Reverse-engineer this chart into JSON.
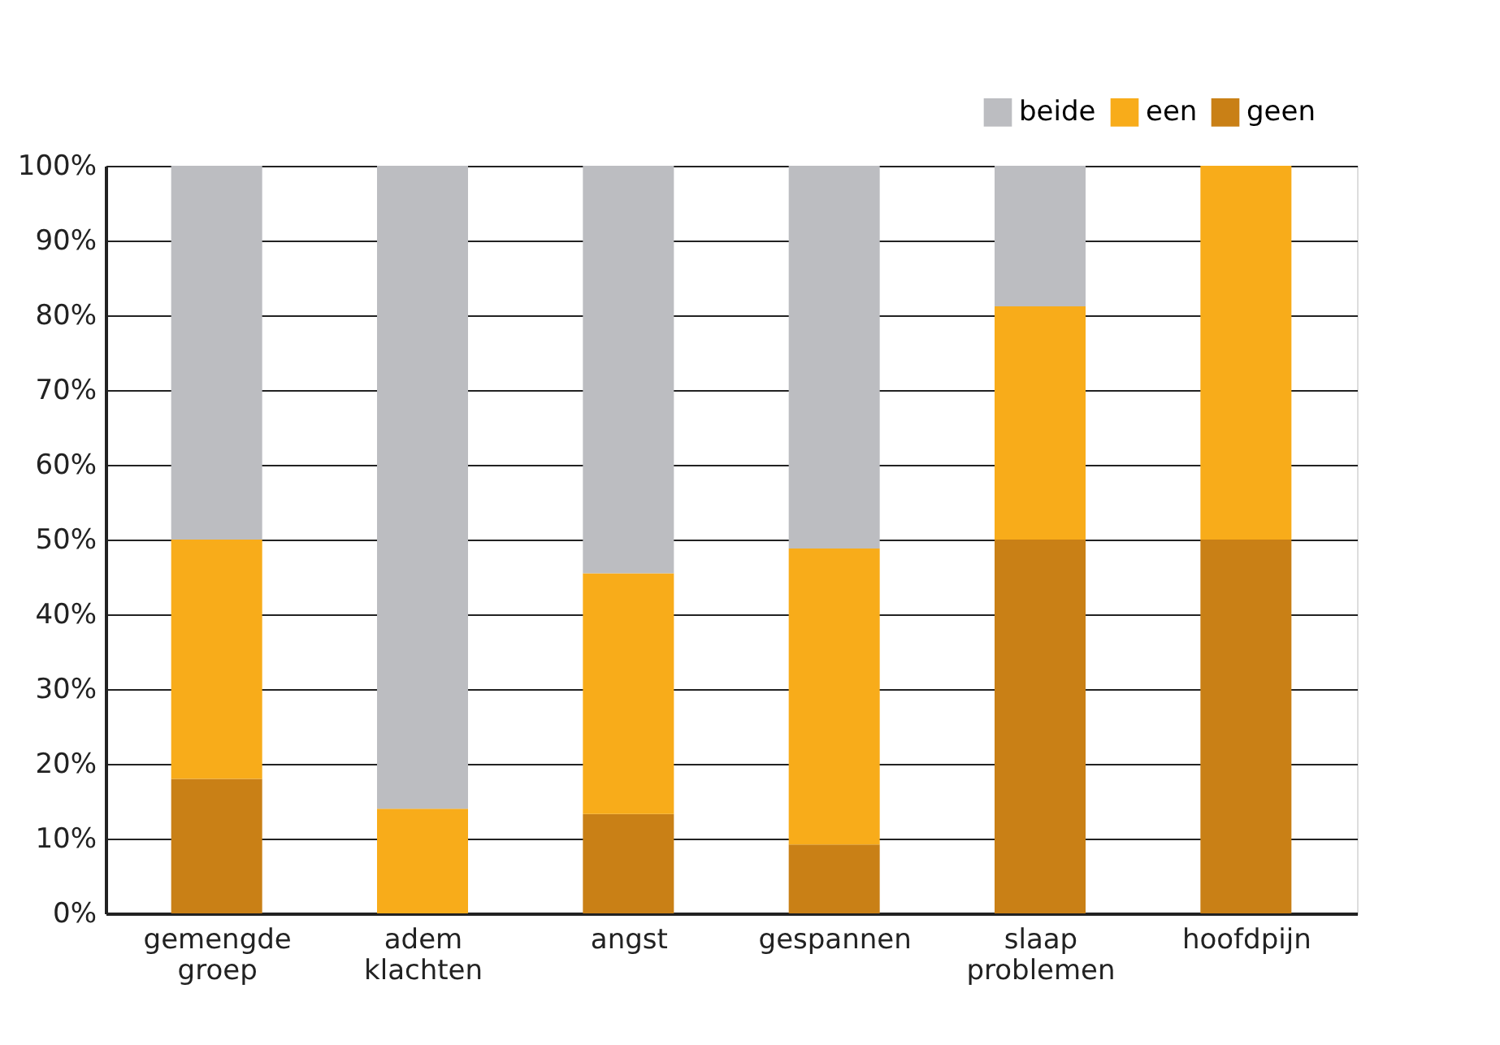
{
  "chart_data": {
    "type": "bar",
    "stacked": true,
    "categories": [
      "gemengde groep",
      "adem klachten",
      "angst",
      "gespannen",
      "slaap problemen",
      "hoofdpijn"
    ],
    "series": [
      {
        "name": "geen",
        "color": "#c98016",
        "values": [
          18,
          0,
          13.3,
          9.2,
          50,
          50
        ]
      },
      {
        "name": "een",
        "color": "#f8ac1a",
        "values": [
          32,
          14,
          32.2,
          39.6,
          31.2,
          50
        ]
      },
      {
        "name": "beide",
        "color": "#bcbdc1",
        "values": [
          50,
          86,
          54.5,
          51.2,
          18.8,
          0
        ]
      }
    ],
    "ylim": [
      0,
      100
    ],
    "yticks": [
      {
        "value": 0,
        "label": "0%"
      },
      {
        "value": 10,
        "label": "10%"
      },
      {
        "value": 20,
        "label": "20%"
      },
      {
        "value": 30,
        "label": "30%"
      },
      {
        "value": 40,
        "label": "40%"
      },
      {
        "value": 50,
        "label": "50%"
      },
      {
        "value": 60,
        "label": "60%"
      },
      {
        "value": 70,
        "label": "70%"
      },
      {
        "value": 80,
        "label": "80%"
      },
      {
        "value": 90,
        "label": "90%"
      },
      {
        "value": 100,
        "label": "100%"
      }
    ],
    "grid": "y",
    "legend": "top right"
  }
}
